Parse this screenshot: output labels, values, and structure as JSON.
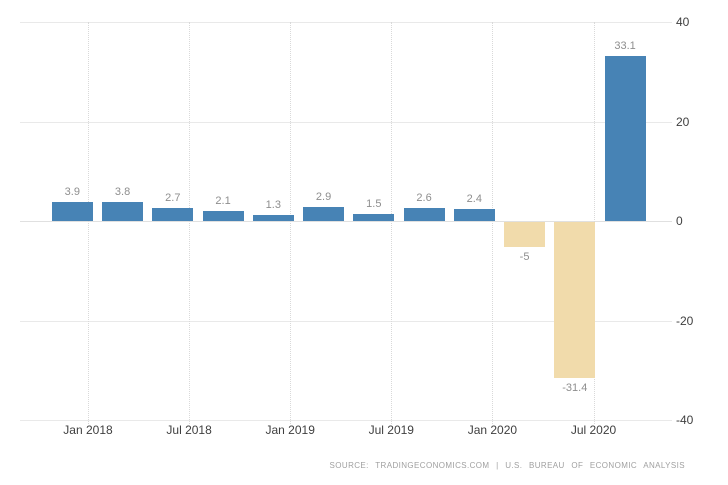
{
  "chart_data": {
    "type": "bar",
    "values": [
      3.9,
      3.8,
      2.7,
      2.1,
      1.3,
      2.9,
      1.5,
      2.6,
      2.4,
      -5,
      -31.4,
      33.1
    ],
    "value_labels": [
      "3.9",
      "3.8",
      "2.7",
      "2.1",
      "1.3",
      "2.9",
      "1.5",
      "2.6",
      "2.4",
      "-5",
      "-31.4",
      "33.1"
    ],
    "x_tick_labels": [
      "Jan 2018",
      "Jul 2018",
      "Jan 2019",
      "Jul 2019",
      "Jan 2020",
      "Jul 2020"
    ],
    "y_tick_labels": [
      "40",
      "20",
      "0",
      "-20",
      "-40"
    ],
    "ylim": [
      -40,
      40
    ],
    "positive_color": "#4783b5",
    "negative_color": "#f1dbab",
    "value_label_color": "#8e8e8e",
    "axis_label_color": "#3f3f3f",
    "grid": true,
    "legend": false
  },
  "footer": {
    "source": "SOURCE: TRADINGECONOMICS.COM | U.S. BUREAU OF ECONOMIC ANALYSIS"
  }
}
